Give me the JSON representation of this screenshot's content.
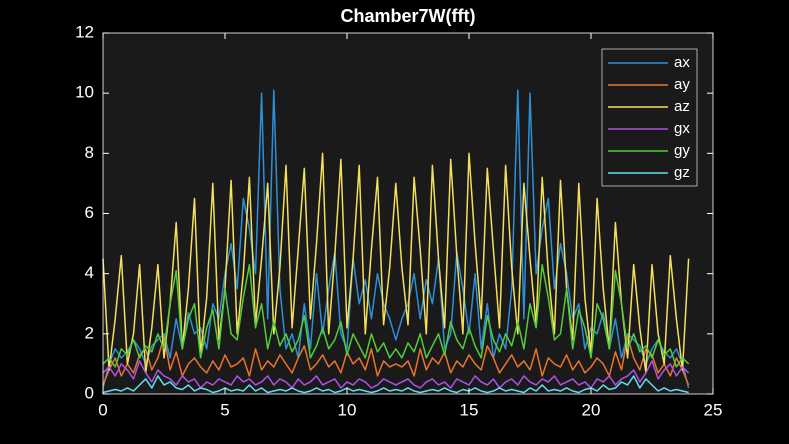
{
  "chart_data": {
    "type": "line",
    "title": "Chamber7W(fft)",
    "x": [
      0,
      0.25,
      0.5,
      0.75,
      1,
      1.25,
      1.5,
      1.75,
      2,
      2.25,
      2.5,
      2.75,
      3,
      3.25,
      3.5,
      3.75,
      4,
      4.25,
      4.5,
      4.75,
      5,
      5.25,
      5.5,
      5.75,
      6,
      6.25,
      6.5,
      6.75,
      7,
      7.25,
      7.5,
      7.75,
      8,
      8.25,
      8.5,
      8.75,
      9,
      9.25,
      9.5,
      9.75,
      10,
      10.25,
      10.5,
      10.75,
      11,
      11.25,
      11.5,
      11.75,
      12,
      12.25,
      12.5,
      12.75,
      13,
      13.25,
      13.5,
      13.75,
      14,
      14.25,
      14.5,
      14.75,
      15,
      15.25,
      15.5,
      15.75,
      16,
      16.25,
      16.5,
      16.75,
      17,
      17.25,
      17.5,
      17.75,
      18,
      18.25,
      18.5,
      18.75,
      19,
      19.25,
      19.5,
      19.75,
      20,
      20.25,
      20.5,
      20.75,
      21,
      21.25,
      21.5,
      21.75,
      22,
      22.25,
      22.5,
      22.75,
      23,
      23.25,
      23.5,
      23.75,
      24
    ],
    "series": [
      {
        "name": "ax",
        "color": "#2f8ed6",
        "values": [
          0.2,
          1.0,
          1.5,
          1.2,
          1.4,
          1.8,
          1.5,
          1.0,
          1.6,
          1.8,
          2.0,
          1.2,
          2.5,
          1.5,
          2.7,
          2.0,
          2.2,
          1.5,
          3.0,
          2.5,
          4.0,
          5.0,
          3.5,
          6.5,
          5.5,
          4.0,
          10.0,
          2.5,
          10.1,
          3.5,
          1.5,
          2.0,
          1.2,
          3.0,
          1.5,
          4.0,
          2.0,
          3.5,
          4.7,
          2.0,
          1.5,
          4.5,
          3.0,
          3.8,
          2.5,
          4.0,
          3.0,
          2.5,
          1.8,
          2.5,
          3.0,
          4.0,
          2.5,
          3.8,
          3.0,
          4.5,
          1.5,
          2.0,
          4.7,
          3.5,
          2.0,
          4.0,
          1.5,
          3.0,
          1.2,
          2.0,
          1.5,
          3.5,
          10.1,
          2.5,
          10.0,
          4.0,
          5.5,
          6.5,
          3.5,
          5.0,
          4.0,
          2.5,
          3.0,
          1.5,
          2.2,
          2.0,
          2.7,
          1.5,
          2.5,
          1.2,
          2.0,
          1.8,
          1.6,
          1.0,
          1.5,
          1.8,
          1.4,
          1.2,
          1.5,
          1.0,
          0.2
        ]
      },
      {
        "name": "ay",
        "color": "#e8742c",
        "values": [
          0.3,
          0.8,
          1.2,
          0.6,
          1.0,
          0.7,
          1.3,
          1.5,
          0.8,
          1.2,
          1.9,
          0.8,
          1.4,
          0.6,
          1.0,
          1.2,
          0.9,
          0.7,
          1.1,
          0.8,
          1.3,
          0.9,
          1.0,
          1.2,
          0.6,
          1.5,
          0.8,
          1.1,
          0.9,
          1.3,
          1.0,
          0.7,
          1.2,
          1.6,
          0.8,
          1.0,
          1.3,
          0.9,
          1.1,
          0.7,
          1.4,
          1.0,
          1.2,
          0.8,
          1.5,
          0.6,
          1.1,
          0.9,
          1.0,
          0.9,
          1.1,
          0.6,
          1.5,
          0.8,
          1.2,
          1.0,
          1.4,
          0.7,
          1.1,
          0.9,
          1.3,
          1.0,
          0.8,
          1.6,
          1.2,
          0.7,
          1.0,
          1.3,
          0.9,
          1.1,
          0.8,
          1.5,
          0.6,
          1.2,
          1.0,
          0.9,
          1.3,
          0.8,
          1.1,
          0.7,
          0.9,
          1.2,
          1.0,
          0.6,
          1.4,
          0.8,
          1.9,
          1.2,
          0.8,
          1.5,
          1.3,
          0.7,
          1.0,
          0.6,
          1.2,
          0.8,
          0.3
        ]
      },
      {
        "name": "az",
        "color": "#f4e05a",
        "values": [
          4.5,
          0.8,
          2.5,
          4.6,
          1.0,
          2.0,
          4.3,
          0.7,
          2.2,
          4.3,
          1.2,
          3.0,
          5.7,
          1.5,
          3.5,
          6.5,
          1.3,
          3.2,
          7.0,
          1.8,
          3.5,
          7.1,
          2.0,
          4.0,
          7.2,
          2.3,
          4.5,
          7.0,
          2.0,
          4.2,
          7.6,
          2.2,
          4.8,
          7.5,
          2.5,
          5.0,
          8.0,
          2.0,
          4.6,
          7.8,
          2.2,
          4.5,
          7.6,
          2.0,
          4.8,
          7.2,
          2.3,
          4.2,
          7.0,
          4.2,
          2.3,
          7.2,
          4.8,
          2.0,
          7.6,
          4.5,
          2.2,
          7.8,
          4.6,
          2.0,
          8.0,
          5.0,
          2.5,
          7.5,
          4.8,
          2.2,
          7.6,
          4.2,
          2.0,
          7.0,
          4.5,
          2.3,
          7.2,
          4.0,
          2.0,
          7.1,
          3.5,
          1.8,
          7.0,
          3.2,
          1.3,
          6.5,
          3.5,
          1.5,
          5.7,
          3.0,
          1.2,
          4.3,
          2.2,
          0.7,
          4.3,
          2.0,
          1.0,
          4.6,
          2.5,
          0.8,
          4.5
        ]
      },
      {
        "name": "gx",
        "color": "#b04fe8",
        "values": [
          0.7,
          0.9,
          0.6,
          1.0,
          0.8,
          0.5,
          1.1,
          0.7,
          0.4,
          0.8,
          0.6,
          0.5,
          0.3,
          0.6,
          0.4,
          0.5,
          0.2,
          0.4,
          0.3,
          0.5,
          0.4,
          0.3,
          0.6,
          0.4,
          0.5,
          0.3,
          0.4,
          0.6,
          0.3,
          0.5,
          0.4,
          0.2,
          0.5,
          0.3,
          0.4,
          0.6,
          0.3,
          0.4,
          0.5,
          0.2,
          0.4,
          0.3,
          0.5,
          0.4,
          0.2,
          0.3,
          0.5,
          0.4,
          0.3,
          0.4,
          0.5,
          0.3,
          0.2,
          0.4,
          0.5,
          0.3,
          0.4,
          0.2,
          0.5,
          0.4,
          0.3,
          0.6,
          0.4,
          0.3,
          0.5,
          0.2,
          0.4,
          0.5,
          0.3,
          0.6,
          0.4,
          0.3,
          0.5,
          0.4,
          0.6,
          0.3,
          0.4,
          0.5,
          0.3,
          0.4,
          0.2,
          0.5,
          0.4,
          0.6,
          0.3,
          0.5,
          0.6,
          0.8,
          0.4,
          0.7,
          1.1,
          0.5,
          0.8,
          1.0,
          0.6,
          0.9,
          0.7
        ]
      },
      {
        "name": "gy",
        "color": "#52cc3a",
        "values": [
          1.0,
          1.2,
          0.9,
          1.5,
          1.3,
          1.8,
          1.2,
          1.6,
          1.4,
          2.0,
          1.5,
          3.0,
          4.1,
          1.5,
          2.5,
          3.0,
          1.2,
          2.2,
          2.8,
          1.5,
          3.5,
          2.0,
          1.8,
          3.2,
          4.3,
          2.2,
          3.0,
          1.5,
          2.4,
          1.6,
          2.0,
          1.4,
          1.8,
          2.6,
          1.2,
          1.6,
          2.2,
          1.5,
          1.8,
          2.4,
          1.3,
          2.0,
          1.6,
          1.2,
          2.0,
          1.4,
          1.7,
          1.2,
          1.5,
          1.2,
          1.7,
          1.4,
          2.0,
          1.2,
          1.6,
          2.0,
          1.3,
          2.4,
          1.8,
          1.5,
          2.2,
          1.6,
          1.2,
          2.6,
          1.8,
          1.4,
          2.0,
          1.6,
          2.4,
          1.5,
          3.0,
          2.2,
          4.3,
          3.2,
          1.8,
          2.0,
          3.5,
          1.5,
          2.8,
          2.2,
          1.2,
          3.0,
          2.5,
          1.5,
          4.1,
          3.0,
          1.5,
          2.0,
          1.4,
          1.6,
          1.2,
          1.8,
          1.3,
          1.5,
          0.9,
          1.2,
          1.0
        ]
      },
      {
        "name": "gz",
        "color": "#5ce0f0",
        "values": [
          0.05,
          0.1,
          0.15,
          0.1,
          0.2,
          0.1,
          0.3,
          0.5,
          0.2,
          0.6,
          0.3,
          0.4,
          0.2,
          0.15,
          0.3,
          0.1,
          0.2,
          0.15,
          0.05,
          0.1,
          0.2,
          0.1,
          0.15,
          0.1,
          0.3,
          0.1,
          0.2,
          0.05,
          0.1,
          0.15,
          0.1,
          0.2,
          0.1,
          0.05,
          0.1,
          0.2,
          0.1,
          0.15,
          0.05,
          0.1,
          0.2,
          0.1,
          0.15,
          0.1,
          0.05,
          0.1,
          0.2,
          0.1,
          0.15,
          0.1,
          0.2,
          0.1,
          0.05,
          0.1,
          0.15,
          0.1,
          0.2,
          0.1,
          0.05,
          0.15,
          0.1,
          0.2,
          0.1,
          0.05,
          0.1,
          0.2,
          0.1,
          0.15,
          0.1,
          0.05,
          0.2,
          0.1,
          0.3,
          0.1,
          0.15,
          0.1,
          0.2,
          0.1,
          0.05,
          0.15,
          0.2,
          0.1,
          0.3,
          0.15,
          0.2,
          0.4,
          0.3,
          0.6,
          0.2,
          0.5,
          0.3,
          0.1,
          0.2,
          0.1,
          0.15,
          0.1,
          0.05
        ]
      }
    ],
    "xlim": [
      0,
      25
    ],
    "xticks": [
      0,
      5,
      10,
      15,
      20,
      25
    ],
    "ylim": [
      0,
      12
    ],
    "yticks": [
      0,
      2,
      4,
      6,
      8,
      10,
      12
    ],
    "grid": false,
    "legend_position": "upper right"
  }
}
